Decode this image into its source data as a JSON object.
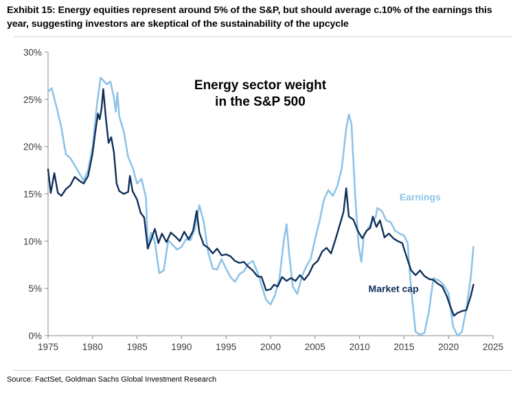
{
  "exhibit_title": "Exhibit 15: Energy equities represent around 5% of the S&P, but should average c.10% of the earnings this year, suggesting investors are skeptical of the sustainability of the upcycle",
  "source": "Source: FactSet, Goldman Sachs Global Investment Research",
  "colors": {
    "market_cap": "#0f2f57",
    "earnings": "#8fc3e8",
    "axis": "#888888"
  },
  "chart_data": {
    "type": "line",
    "title_lines": [
      "Energy sector weight",
      "in the S&P 500"
    ],
    "xlabel": "",
    "ylabel": "",
    "xlim": [
      1975,
      2025
    ],
    "ylim": [
      0,
      30
    ],
    "x_ticks": [
      1975,
      1980,
      1985,
      1990,
      1995,
      2000,
      2005,
      2010,
      2015,
      2020,
      2025
    ],
    "y_ticks": [
      0,
      5,
      10,
      15,
      20,
      25,
      30
    ],
    "y_tick_labels": [
      "0%",
      "5%",
      "10%",
      "15%",
      "20%",
      "25%",
      "30%"
    ],
    "grid": false,
    "legend": "inline labels",
    "series": [
      {
        "name": "Earnings",
        "color_key": "earnings",
        "points": [
          [
            1975.0,
            25.8
          ],
          [
            1975.4,
            26.2
          ],
          [
            1976.0,
            24.0
          ],
          [
            1976.5,
            22.0
          ],
          [
            1977.0,
            19.2
          ],
          [
            1977.5,
            18.8
          ],
          [
            1978.0,
            18.0
          ],
          [
            1978.5,
            17.2
          ],
          [
            1979.0,
            16.4
          ],
          [
            1979.5,
            17.5
          ],
          [
            1980.0,
            20.0
          ],
          [
            1980.5,
            24.5
          ],
          [
            1980.9,
            27.3
          ],
          [
            1981.2,
            27.0
          ],
          [
            1981.6,
            26.6
          ],
          [
            1982.0,
            26.9
          ],
          [
            1982.4,
            25.2
          ],
          [
            1982.6,
            23.7
          ],
          [
            1982.8,
            25.7
          ],
          [
            1983.0,
            23.2
          ],
          [
            1983.5,
            21.6
          ],
          [
            1984.0,
            18.9
          ],
          [
            1984.5,
            17.8
          ],
          [
            1985.0,
            16.1
          ],
          [
            1985.5,
            16.6
          ],
          [
            1986.0,
            14.6
          ],
          [
            1986.2,
            9.6
          ],
          [
            1986.6,
            10.9
          ],
          [
            1987.0,
            9.9
          ],
          [
            1987.5,
            6.6
          ],
          [
            1988.0,
            6.9
          ],
          [
            1988.5,
            10.1
          ],
          [
            1989.0,
            9.6
          ],
          [
            1989.5,
            9.1
          ],
          [
            1990.0,
            9.4
          ],
          [
            1990.5,
            10.2
          ],
          [
            1991.0,
            10.1
          ],
          [
            1991.5,
            11.3
          ],
          [
            1992.0,
            13.8
          ],
          [
            1992.5,
            12.0
          ],
          [
            1993.0,
            8.8
          ],
          [
            1993.5,
            7.1
          ],
          [
            1994.0,
            7.0
          ],
          [
            1994.5,
            8.1
          ],
          [
            1995.0,
            7.1
          ],
          [
            1995.5,
            6.2
          ],
          [
            1996.0,
            5.7
          ],
          [
            1996.5,
            6.5
          ],
          [
            1997.0,
            6.8
          ],
          [
            1997.5,
            7.6
          ],
          [
            1998.0,
            7.9
          ],
          [
            1998.5,
            6.8
          ],
          [
            1999.0,
            5.3
          ],
          [
            1999.5,
            3.8
          ],
          [
            2000.0,
            3.3
          ],
          [
            2000.5,
            4.3
          ],
          [
            2001.0,
            6.1
          ],
          [
            2001.5,
            10.1
          ],
          [
            2001.8,
            11.8
          ],
          [
            2002.1,
            8.6
          ],
          [
            2002.5,
            5.2
          ],
          [
            2003.0,
            4.4
          ],
          [
            2003.5,
            6.2
          ],
          [
            2004.0,
            7.3
          ],
          [
            2004.5,
            8.1
          ],
          [
            2005.0,
            10.2
          ],
          [
            2005.5,
            12.1
          ],
          [
            2006.0,
            14.4
          ],
          [
            2006.5,
            15.4
          ],
          [
            2007.0,
            14.8
          ],
          [
            2007.5,
            15.8
          ],
          [
            2008.0,
            17.7
          ],
          [
            2008.5,
            21.9
          ],
          [
            2008.8,
            23.4
          ],
          [
            2009.1,
            22.4
          ],
          [
            2009.5,
            15.0
          ],
          [
            2009.9,
            9.5
          ],
          [
            2010.2,
            7.8
          ],
          [
            2010.5,
            10.7
          ],
          [
            2011.0,
            11.4
          ],
          [
            2011.5,
            12.2
          ],
          [
            2011.8,
            12.5
          ],
          [
            2012.0,
            13.5
          ],
          [
            2012.5,
            13.2
          ],
          [
            2013.0,
            12.2
          ],
          [
            2013.5,
            12.0
          ],
          [
            2014.0,
            11.1
          ],
          [
            2014.5,
            10.8
          ],
          [
            2015.0,
            10.6
          ],
          [
            2015.4,
            9.8
          ],
          [
            2015.8,
            4.9
          ],
          [
            2016.3,
            0.4
          ],
          [
            2016.8,
            0.1
          ],
          [
            2017.3,
            0.3
          ],
          [
            2017.8,
            2.6
          ],
          [
            2018.3,
            6.1
          ],
          [
            2019.0,
            5.8
          ],
          [
            2019.5,
            5.3
          ],
          [
            2020.0,
            4.5
          ],
          [
            2020.5,
            1.0
          ],
          [
            2021.0,
            0.0
          ],
          [
            2021.5,
            0.4
          ],
          [
            2022.0,
            2.8
          ],
          [
            2022.5,
            6.2
          ],
          [
            2022.8,
            9.4
          ]
        ]
      },
      {
        "name": "Market cap",
        "color_key": "market_cap",
        "points": [
          [
            1975.0,
            17.6
          ],
          [
            1975.3,
            15.1
          ],
          [
            1975.7,
            17.2
          ],
          [
            1976.1,
            15.1
          ],
          [
            1976.5,
            14.8
          ],
          [
            1977.0,
            15.5
          ],
          [
            1977.5,
            15.9
          ],
          [
            1978.0,
            16.8
          ],
          [
            1978.5,
            16.4
          ],
          [
            1979.0,
            16.1
          ],
          [
            1979.5,
            16.9
          ],
          [
            1980.0,
            19.3
          ],
          [
            1980.3,
            21.5
          ],
          [
            1980.6,
            23.5
          ],
          [
            1980.8,
            22.9
          ],
          [
            1981.0,
            24.0
          ],
          [
            1981.2,
            26.1
          ],
          [
            1981.5,
            23.0
          ],
          [
            1981.8,
            20.4
          ],
          [
            1982.1,
            21.0
          ],
          [
            1982.4,
            19.4
          ],
          [
            1982.7,
            16.1
          ],
          [
            1983.0,
            15.3
          ],
          [
            1983.5,
            15.0
          ],
          [
            1984.0,
            15.2
          ],
          [
            1984.2,
            16.9
          ],
          [
            1984.5,
            15.3
          ],
          [
            1985.0,
            14.4
          ],
          [
            1985.4,
            13.0
          ],
          [
            1985.8,
            12.5
          ],
          [
            1986.2,
            9.2
          ],
          [
            1986.6,
            10.2
          ],
          [
            1987.0,
            11.3
          ],
          [
            1987.4,
            9.8
          ],
          [
            1987.8,
            10.8
          ],
          [
            1988.3,
            9.9
          ],
          [
            1988.8,
            10.9
          ],
          [
            1989.3,
            10.5
          ],
          [
            1989.8,
            10.0
          ],
          [
            1990.3,
            11.0
          ],
          [
            1990.8,
            10.2
          ],
          [
            1991.3,
            11.1
          ],
          [
            1991.7,
            13.2
          ],
          [
            1992.0,
            10.9
          ],
          [
            1992.5,
            9.6
          ],
          [
            1993.0,
            9.3
          ],
          [
            1993.5,
            8.7
          ],
          [
            1994.0,
            9.2
          ],
          [
            1994.5,
            8.5
          ],
          [
            1995.0,
            8.6
          ],
          [
            1995.5,
            8.4
          ],
          [
            1996.0,
            7.9
          ],
          [
            1996.5,
            7.7
          ],
          [
            1997.0,
            7.8
          ],
          [
            1997.5,
            7.3
          ],
          [
            1998.0,
            6.9
          ],
          [
            1998.5,
            6.3
          ],
          [
            1999.0,
            6.2
          ],
          [
            1999.5,
            4.8
          ],
          [
            2000.0,
            4.9
          ],
          [
            2000.4,
            5.4
          ],
          [
            2000.8,
            5.2
          ],
          [
            2001.3,
            6.2
          ],
          [
            2001.8,
            5.8
          ],
          [
            2002.3,
            6.1
          ],
          [
            2002.8,
            5.8
          ],
          [
            2003.3,
            6.4
          ],
          [
            2003.8,
            5.9
          ],
          [
            2004.3,
            6.5
          ],
          [
            2004.8,
            7.5
          ],
          [
            2005.3,
            7.9
          ],
          [
            2005.8,
            8.9
          ],
          [
            2006.3,
            9.3
          ],
          [
            2006.8,
            8.7
          ],
          [
            2007.3,
            10.2
          ],
          [
            2007.8,
            11.8
          ],
          [
            2008.2,
            13.1
          ],
          [
            2008.5,
            15.6
          ],
          [
            2008.8,
            12.6
          ],
          [
            2009.3,
            12.3
          ],
          [
            2009.8,
            11.1
          ],
          [
            2010.3,
            10.3
          ],
          [
            2010.8,
            11.1
          ],
          [
            2011.2,
            11.4
          ],
          [
            2011.5,
            12.6
          ],
          [
            2011.9,
            11.5
          ],
          [
            2012.3,
            12.2
          ],
          [
            2012.8,
            10.4
          ],
          [
            2013.3,
            10.8
          ],
          [
            2013.8,
            10.3
          ],
          [
            2014.3,
            10.0
          ],
          [
            2014.8,
            9.8
          ],
          [
            2015.3,
            8.3
          ],
          [
            2015.8,
            6.9
          ],
          [
            2016.3,
            6.4
          ],
          [
            2016.8,
            6.9
          ],
          [
            2017.3,
            6.3
          ],
          [
            2017.8,
            6.0
          ],
          [
            2018.3,
            5.9
          ],
          [
            2018.8,
            5.5
          ],
          [
            2019.3,
            5.2
          ],
          [
            2019.8,
            4.2
          ],
          [
            2020.2,
            3.1
          ],
          [
            2020.6,
            2.1
          ],
          [
            2021.0,
            2.4
          ],
          [
            2021.5,
            2.6
          ],
          [
            2022.0,
            2.7
          ],
          [
            2022.5,
            4.2
          ],
          [
            2022.8,
            5.4
          ]
        ]
      }
    ],
    "annotations": [
      {
        "text": "Earnings",
        "series": "Earnings",
        "x": 2014.5,
        "y": 14.3
      },
      {
        "text": "Market cap",
        "series": "Market cap",
        "x": 2011.0,
        "y": 4.6
      }
    ]
  }
}
